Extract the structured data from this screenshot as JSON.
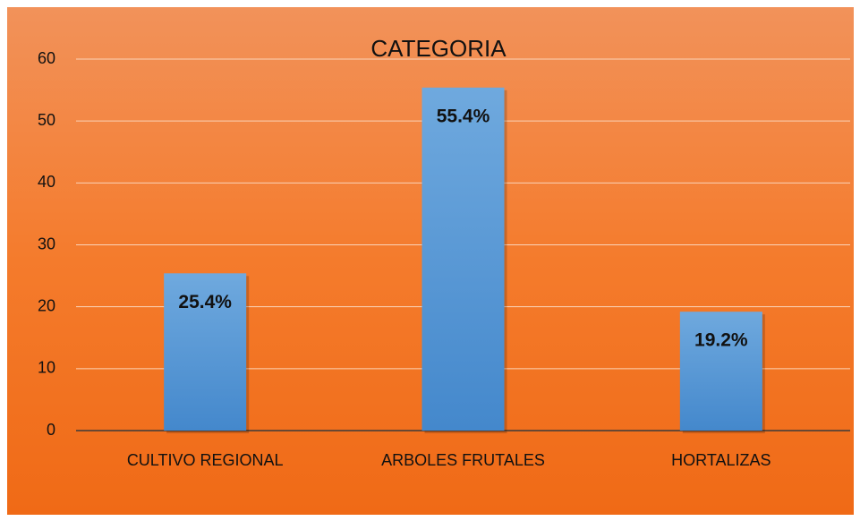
{
  "chart_data": {
    "type": "bar",
    "title": "CATEGORIA",
    "categories": [
      "CULTIVO REGIONAL",
      "ARBOLES FRUTALES",
      "HORTALIZAS"
    ],
    "values": [
      25.4,
      55.4,
      19.2
    ],
    "value_labels": [
      "25.4%",
      "55.4%",
      "19.2%"
    ],
    "color": "#5b9bd5",
    "ylim": [
      0,
      60
    ],
    "yticks": [
      0,
      10,
      20,
      30,
      40,
      50,
      60
    ],
    "grid": true
  }
}
